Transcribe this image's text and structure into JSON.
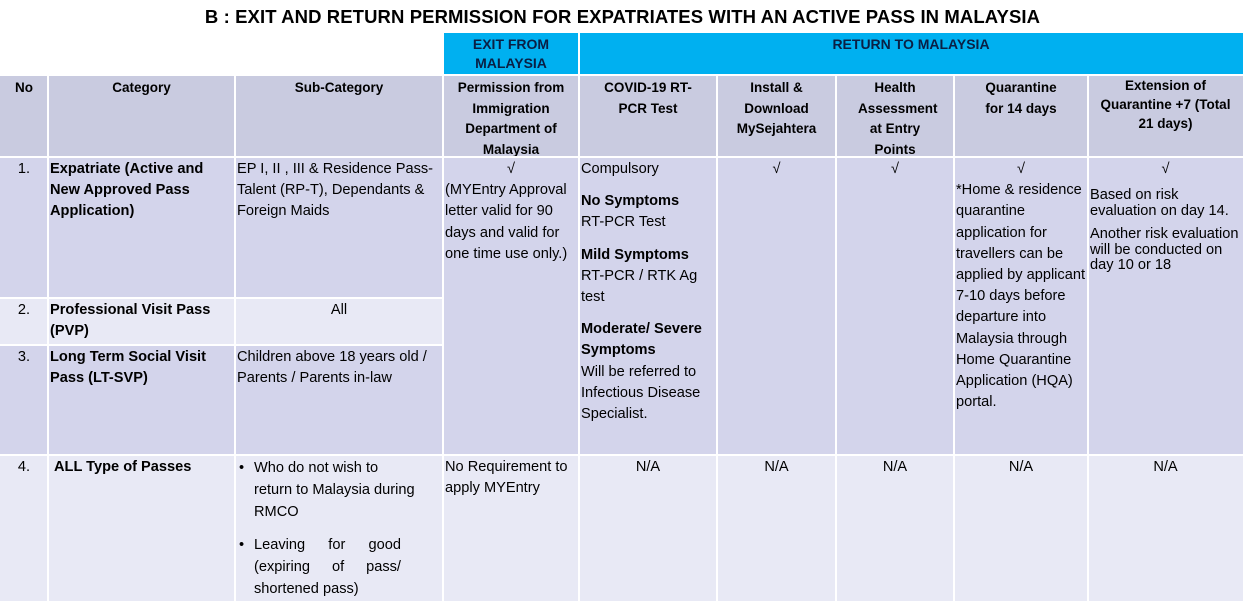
{
  "title": "B : EXIT AND RETURN PERMISSION FOR EXPATRIATES WITH AN ACTIVE PASS IN MALAYSIA",
  "groups": {
    "exit": "EXIT FROM MALAYSIA",
    "return": "RETURN TO MALAYSIA"
  },
  "headers": {
    "no": "No",
    "category": "Category",
    "subcategory": "Sub-Category",
    "permission": "Permission from Immigration Department  of Malaysia",
    "covid": "COVID-19 RT-PCR Test",
    "install": "Install & Download MySejahtera",
    "health": "Health Assessment at Entry Points",
    "quarantine": "Quarantine for 14 days",
    "extension": "Extension of Quarantine +7 (Total 21 days)"
  },
  "rows": [
    {
      "no": "1.",
      "category": "Expatriate (Active and New Approved Pass Application)",
      "subcategory": "EP I, II , III & Residence Pass-Talent (RP-T), Dependants & Foreign Maids"
    },
    {
      "no": "2.",
      "category": "Professional Visit Pass (PVP)",
      "subcategory": "All"
    },
    {
      "no": "3.",
      "category": "Long Term Social Visit Pass (LT-SVP)",
      "subcategory": "Children above 18 years old / Parents / Parents in-law"
    },
    {
      "no": "4.",
      "category": "ALL Type of Passes",
      "subcategory_items": [
        "Who do not wish to return to Malaysia during RMCO",
        "Leaving for good (expiring of pass/ shortened pass)"
      ]
    }
  ],
  "merged": {
    "permission_check": "√",
    "permission_note": "(MYEntry Approval letter valid for 90 days and valid for one time use only.)",
    "covid_compulsory": "Compulsory",
    "covid_no_symptoms_label": "No Symptoms",
    "covid_no_symptoms_text": "RT-PCR Test",
    "covid_mild_label": "Mild Symptoms",
    "covid_mild_text": "RT-PCR / RTK Ag test",
    "covid_severe_label": "Moderate/ Severe Symptoms",
    "covid_severe_text": "Will be referred to Infectious Disease Specialist.",
    "install_check": "√",
    "health_check": "√",
    "quarantine_check": "√",
    "quarantine_note": "*Home & residence quarantine application for travellers can be applied by applicant 7-10 days before departure into Malaysia through Home Quarantine Application (HQA) portal.",
    "extension_check": "√",
    "extension_note1": "Based on risk evaluation on day 14.",
    "extension_note2": "Another risk evaluation will be conducted on day 10 or 18"
  },
  "row4": {
    "permission": "No Requirement to apply MYEntry",
    "covid": "N/A",
    "install": "N/A",
    "health": "N/A",
    "quarantine": "N/A",
    "extension": "N/A"
  },
  "bullet_symbol": "•"
}
